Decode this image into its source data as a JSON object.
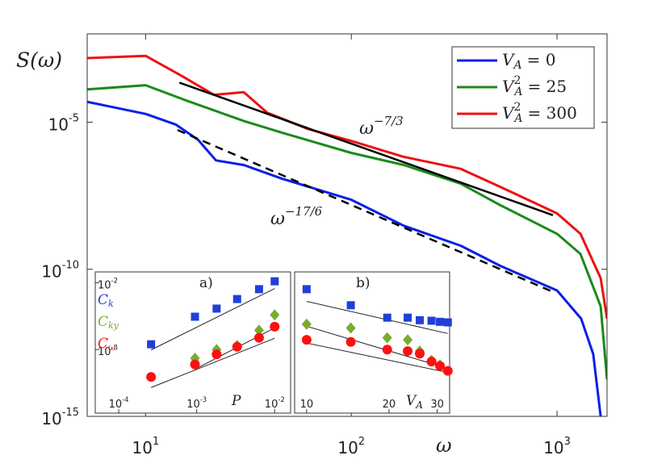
{
  "chart_data": [
    {
      "type": "line",
      "ylabel": "S(ω)",
      "xlabel": "ω",
      "log_x": true,
      "log_y": true,
      "xlim": [
        5.2,
        1750
      ],
      "ylim": [
        1e-15,
        0.01
      ],
      "xticks": [
        {
          "value": 10,
          "label": "10",
          "exponent": "1"
        },
        {
          "value": 100,
          "label": "10",
          "exponent": "2"
        },
        {
          "value": 1000,
          "label": "10",
          "exponent": "3"
        }
      ],
      "yticks": [
        {
          "value": 1e-15,
          "label": "10",
          "exponent": "-15"
        },
        {
          "value": 1e-10,
          "label": "10",
          "exponent": "-10"
        },
        {
          "value": 1e-05,
          "label": "10",
          "exponent": "-5"
        }
      ],
      "legend": "upper right",
      "series": [
        {
          "name": "V",
          "sub": "A",
          "eq": "= 0",
          "color": "#0a1fe6",
          "x": [
            5.2,
            10,
            14,
            18,
            22,
            30,
            46,
            100,
            180,
            340,
            530,
            1000,
            1310,
            1500,
            1630
          ],
          "values": [
            4.9e-05,
            1.9e-05,
            8.3e-06,
            2.5e-06,
            5e-07,
            3.5e-07,
            1.2e-07,
            2.3e-08,
            3e-09,
            6.3e-10,
            1.3e-10,
            1.9e-11,
            2.1e-12,
            1.3e-13,
            1e-15
          ]
        },
        {
          "name": "V",
          "sub": "A",
          "sup": "2",
          "eq": "= 25",
          "color": "#1b8a1b",
          "x": [
            5.2,
            10,
            15.7,
            30,
            46,
            100,
            180,
            340,
            530,
            1000,
            1300,
            1630,
            1750
          ],
          "values": [
            0.00013,
            0.00018,
            5.5e-05,
            1.1e-05,
            4.4e-06,
            9e-07,
            3.5e-07,
            8.1e-08,
            1.5e-08,
            1.6e-09,
            3.3e-10,
            5.5e-12,
            1.8e-14
          ]
        },
        {
          "name": "V",
          "sub": "A",
          "sup": "2",
          "eq": "= 300",
          "color": "#ee1111",
          "x": [
            5.2,
            10,
            15,
            21.5,
            30,
            39,
            61,
            100,
            180,
            340,
            530,
            1000,
            1300,
            1630,
            1750
          ],
          "values": [
            0.0015,
            0.0018,
            0.00037,
            8.5e-05,
            0.000105,
            2.1e-05,
            6e-06,
            2.3e-06,
            6.6e-07,
            2.6e-07,
            6.3e-08,
            7.9e-09,
            1.6e-09,
            5e-11,
            2.1e-12
          ]
        }
      ],
      "reference_lines": [
        {
          "x": [
            14.6,
            955
          ],
          "values": [
            0.00022,
            6.9e-09
          ],
          "style": "solid",
          "label": "ω",
          "exponent": "−7/3"
        },
        {
          "x": [
            14.3,
            955
          ],
          "values": [
            5.4e-06,
            1.7e-11
          ],
          "style": "dashed",
          "label": "ω",
          "exponent": "−17/6"
        }
      ]
    },
    {
      "type": "scatter",
      "panel": "a)",
      "xlabel": "P",
      "log_x": true,
      "log_y": true,
      "xlim": [
        5e-05,
        0.016
      ],
      "ylim": [
        0.000112,
        0.0145
      ],
      "xticks": [
        {
          "value": 0.0001,
          "label": "10",
          "exponent": "-4"
        },
        {
          "value": 0.001,
          "label": "10",
          "exponent": "-3"
        },
        {
          "value": 0.01,
          "label": "10",
          "exponent": "-2"
        }
      ],
      "yticks": [
        {
          "value": 0.001,
          "label": "10",
          "exponent": "-3"
        },
        {
          "value": 0.01,
          "label": "10",
          "exponent": "-2"
        }
      ],
      "x": [
        0.00026,
        0.00095,
        0.0018,
        0.0033,
        0.0063,
        0.01
      ],
      "series": [
        {
          "name": "C",
          "sub": "k",
          "color": "#1f3fd8",
          "marker": "square",
          "values": [
            0.0012,
            0.0031,
            0.0041,
            0.0057,
            0.008,
            0.0105
          ]
        },
        {
          "name": "C",
          "sub": "ky",
          "color": "#77ac30",
          "marker": "diamond",
          "values": [
            null,
            0.00074,
            0.001,
            0.00115,
            0.00195,
            0.0033
          ]
        },
        {
          "name": "C",
          "sub": "ω",
          "color": "#ff1010",
          "marker": "circle",
          "values": [
            0.00039,
            0.0006,
            0.00085,
            0.0011,
            0.0015,
            0.0022
          ]
        }
      ]
    },
    {
      "type": "scatter",
      "panel": "b)",
      "xlabel": "V",
      "xlabel_sub": "A",
      "log_x": true,
      "log_y": true,
      "xlim": [
        9.04,
        33.3
      ],
      "ylim": [
        0.000112,
        0.0145
      ],
      "xticks": [
        10,
        20,
        30
      ],
      "yticks": [],
      "x": [
        10,
        14.5,
        19.7,
        23.4,
        25.9,
        28.6,
        30.7,
        32.8
      ],
      "series": [
        {
          "color": "#1f3fd8",
          "marker": "square",
          "values": [
            0.008,
            0.0046,
            0.003,
            0.003,
            0.00275,
            0.0027,
            0.0026,
            0.00255
          ]
        },
        {
          "color": "#77ac30",
          "marker": "diamond",
          "values": [
            0.0024,
            0.0021,
            0.0015,
            0.0014,
            0.00095,
            0.00069,
            0.00059,
            null
          ]
        },
        {
          "color": "#ff1010",
          "marker": "circle",
          "values": [
            0.0014,
            0.0013,
            0.001,
            0.00095,
            0.00087,
            0.00066,
            0.00057,
            0.00048
          ]
        }
      ]
    }
  ]
}
